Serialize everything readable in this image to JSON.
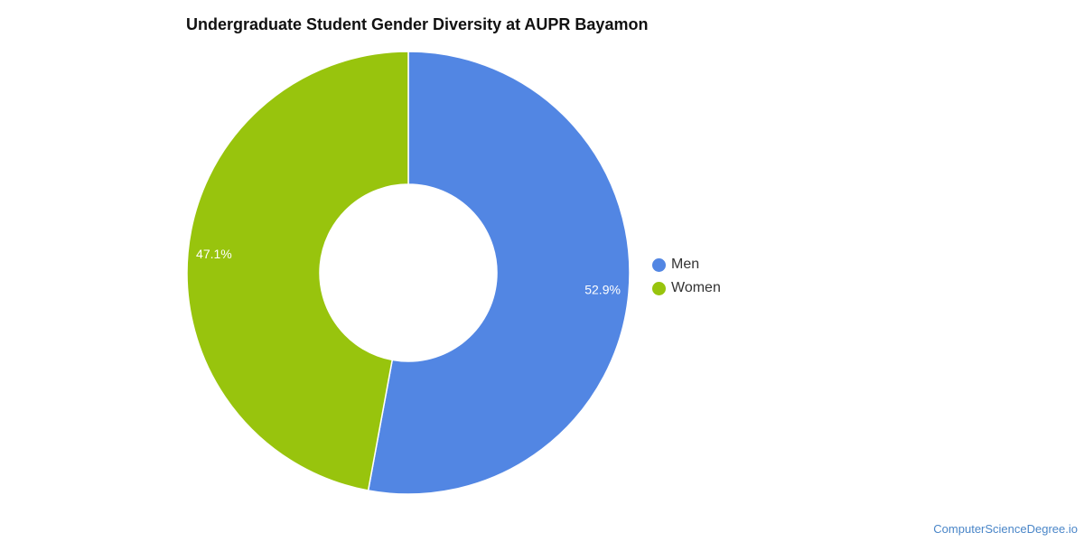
{
  "chart_data": {
    "type": "pie",
    "title": "Undergraduate Student Gender Diversity at AUPR Bayamon",
    "categories": [
      "Men",
      "Women"
    ],
    "values": [
      52.9,
      47.1
    ],
    "value_labels": [
      "52.9%",
      "47.1%"
    ],
    "colors": [
      "#5286e3",
      "#98c40d"
    ],
    "donut": true,
    "legend_position": "right"
  },
  "legend": {
    "items": [
      {
        "label": "Men",
        "color": "#5286e3"
      },
      {
        "label": "Women",
        "color": "#98c40d"
      }
    ]
  },
  "footer": {
    "source": "ComputerScienceDegree.io"
  }
}
